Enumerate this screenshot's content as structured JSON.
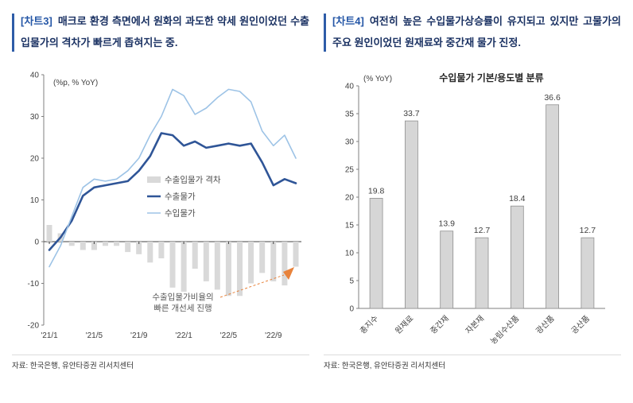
{
  "panels": [
    {
      "tag": "[차트3]",
      "title": "매크로 환경 측면에서 원화의 과도한 약세 원인이었던 수출입물가의 격차가 빠르게 좁혀지는 중.",
      "source": "자료: 한국은행, 유안타증권 리서치센터"
    },
    {
      "tag": "[차트4]",
      "title": "여전히 높은 수입물가상승률이 유지되고 있지만 고물가의 주요 원인이었던 원재료와 중간재 물가 진정.",
      "source": "자료: 한국은행, 유안타증권 리서치센터"
    }
  ],
  "colors": {
    "accent_blue": "#2e5ca8",
    "header_text": "#1b3263",
    "export_line": "#2f5597",
    "import_line": "#9dc3e6",
    "gap_bar": "#d9d9d9",
    "annotation_orange": "#e8833c"
  },
  "chart_data": [
    {
      "type": "combo",
      "ylabel": "(%p, % YoY)",
      "ylim": [
        -20,
        40
      ],
      "ytick_step": 10,
      "n_points": 23,
      "x_tick_labels": [
        "'21/1",
        "'21/5",
        "'21/9",
        "'22/1",
        "'22/5",
        "'22/9"
      ],
      "x_tick_positions": [
        0,
        4,
        8,
        12,
        16,
        20
      ],
      "series": [
        {
          "name": "수출입물가 격차",
          "kind": "bar",
          "color": "#d9d9d9",
          "values": [
            4,
            2,
            -1,
            -2,
            -2,
            -1,
            -1,
            -2.5,
            -3,
            -5,
            -4,
            -11,
            -12,
            -6.5,
            -9.5,
            -11.5,
            -13,
            -13,
            -10,
            -7.5,
            -9.5,
            -10.5,
            -6
          ]
        },
        {
          "name": "수출물가",
          "kind": "line",
          "color": "#2f5597",
          "stroke_width": 2.6,
          "values": [
            -2,
            1,
            5,
            11,
            13,
            13.5,
            14,
            14.5,
            17,
            20.5,
            26,
            25.5,
            23,
            24,
            22.5,
            23,
            23.5,
            23,
            23.5,
            19,
            13.5,
            15,
            14
          ]
        },
        {
          "name": "수입물가",
          "kind": "line",
          "color": "#9dc3e6",
          "stroke_width": 1.6,
          "values": [
            -6,
            -1,
            6,
            13,
            15,
            14.5,
            15,
            17,
            20,
            25.5,
            30,
            36.5,
            35,
            30.5,
            32,
            34.5,
            36.5,
            36,
            33.5,
            26.5,
            23,
            25.5,
            20
          ]
        }
      ],
      "annotation": {
        "text_lines": [
          "수출입물가비율의",
          "빠른 개선세 진행"
        ],
        "color": "#e8833c"
      }
    },
    {
      "type": "bar",
      "title": "수입물가 기본/용도별 분류",
      "ylabel": "(% YoY)",
      "ylim": [
        0,
        40
      ],
      "ytick_step": 5,
      "bar_color": "#d6d6d6",
      "bar_stroke": "#909090",
      "categories": [
        "총지수",
        "원재료",
        "중간재",
        "자본재",
        "농림수산품",
        "광산품",
        "공산품"
      ],
      "values": [
        19.8,
        33.7,
        13.9,
        12.7,
        18.4,
        36.6,
        12.7
      ]
    }
  ]
}
